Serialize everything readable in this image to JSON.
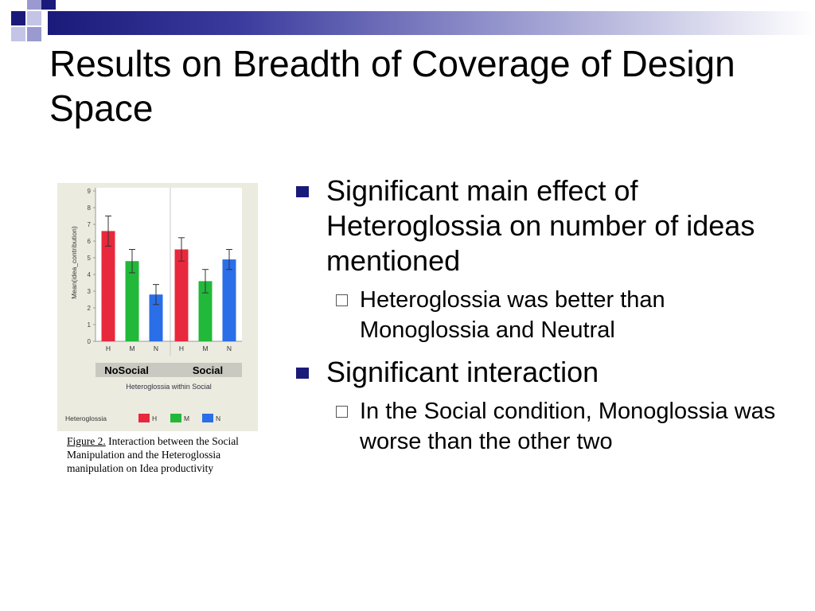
{
  "slide": {
    "title": "Results on Breadth of Coverage of Design Space",
    "accent_color": "#1a1a7a"
  },
  "bullets": [
    {
      "text": "Significant main effect of Heteroglossia on number of ideas mentioned",
      "sub": [
        "Heteroglossia was better than Monoglossia and Neutral"
      ]
    },
    {
      "text": "Significant interaction",
      "sub": [
        "In the Social condition, Monoglossia was worse than the other two"
      ]
    }
  ],
  "figure": {
    "caption_label": "Figure 2.",
    "caption_text": " Interaction between the Social Manipulation and the Heteroglossia manipulation on Idea productivity"
  },
  "chart_data": {
    "type": "bar",
    "ylabel": "Mean(idea_contribution)",
    "xlabel": "Heteroglossia within Social",
    "ylim": [
      0,
      9
    ],
    "yticks": [
      "0",
      "1",
      "2",
      "3",
      "4",
      "5",
      "6",
      "7",
      "8",
      "9"
    ],
    "groups": [
      "NoSocial",
      "Social"
    ],
    "categories": [
      "H",
      "M",
      "N"
    ],
    "series": [
      {
        "group": "NoSocial",
        "values": [
          6.6,
          4.8,
          2.8
        ],
        "errors": [
          0.9,
          0.7,
          0.6
        ]
      },
      {
        "group": "Social",
        "values": [
          5.5,
          3.6,
          4.9
        ],
        "errors": [
          0.7,
          0.7,
          0.6
        ]
      }
    ],
    "legend": {
      "title": "Heteroglossia",
      "items": [
        "H",
        "M",
        "N"
      ],
      "colors": [
        "#e8283c",
        "#22b83a",
        "#2a6ee8"
      ]
    },
    "grid": false
  }
}
